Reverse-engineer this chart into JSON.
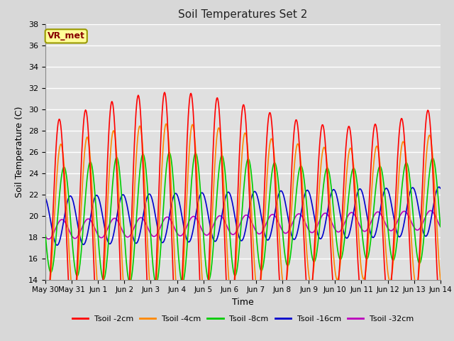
{
  "title": "Soil Temperatures Set 2",
  "xlabel": "Time",
  "ylabel": "Soil Temperature (C)",
  "ylim": [
    14,
    38
  ],
  "yticks": [
    14,
    16,
    18,
    20,
    22,
    24,
    26,
    28,
    30,
    32,
    34,
    36,
    38
  ],
  "fig_bg_color": "#d8d8d8",
  "plot_bg_color": "#e0e0e0",
  "grid_color": "#ffffff",
  "annotation_text": "VR_met",
  "annotation_bg": "#ffff99",
  "annotation_border": "#999900",
  "annotation_text_color": "#880000",
  "series": {
    "Tsoil -2cm": {
      "color": "#ff0000",
      "lw": 1.2
    },
    "Tsoil -4cm": {
      "color": "#ff8800",
      "lw": 1.2
    },
    "Tsoil -8cm": {
      "color": "#00cc00",
      "lw": 1.2
    },
    "Tsoil -16cm": {
      "color": "#0000cc",
      "lw": 1.2
    },
    "Tsoil -32cm": {
      "color": "#bb00bb",
      "lw": 1.2
    }
  },
  "num_days": 15,
  "pts_per_day": 48
}
